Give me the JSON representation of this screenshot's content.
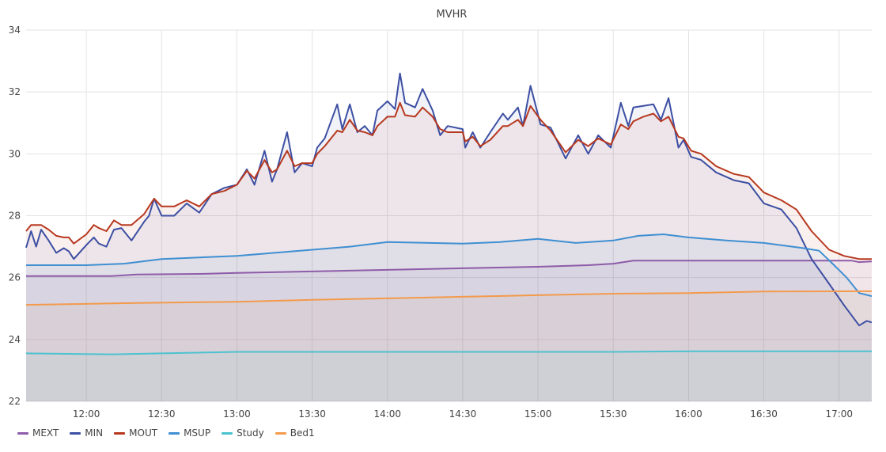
{
  "chart_data": {
    "type": "line",
    "title": "MVHR",
    "xlabel": "",
    "ylabel": "",
    "xlim": [
      "11:36",
      "17:13"
    ],
    "ylim": [
      22,
      34
    ],
    "x_ticks": [
      "12:00",
      "12:30",
      "13:00",
      "13:30",
      "14:00",
      "14:30",
      "15:00",
      "15:30",
      "16:00",
      "16:30",
      "17:00"
    ],
    "y_ticks": [
      22,
      24,
      26,
      28,
      30,
      32,
      34
    ],
    "grid": true,
    "fill_under": true,
    "legend_placement": "bottom-left",
    "series": [
      {
        "name": "MEXT",
        "color": "#8e5ca8",
        "points": [
          [
            "11:36",
            26.05
          ],
          [
            "12:10",
            26.05
          ],
          [
            "12:20",
            26.1
          ],
          [
            "12:45",
            26.12
          ],
          [
            "13:00",
            26.15
          ],
          [
            "13:30",
            26.2
          ],
          [
            "14:00",
            26.25
          ],
          [
            "14:30",
            26.3
          ],
          [
            "15:00",
            26.35
          ],
          [
            "15:20",
            26.4
          ],
          [
            "15:30",
            26.45
          ],
          [
            "15:38",
            26.55
          ],
          [
            "16:30",
            26.55
          ],
          [
            "17:05",
            26.55
          ],
          [
            "17:08",
            26.5
          ],
          [
            "17:13",
            26.52
          ]
        ]
      },
      {
        "name": "MIN",
        "color": "#3d4fa3",
        "points": [
          [
            "11:36",
            26.97
          ],
          [
            "11:38",
            27.5
          ],
          [
            "11:40",
            27.0
          ],
          [
            "11:42",
            27.55
          ],
          [
            "11:45",
            27.2
          ],
          [
            "11:48",
            26.8
          ],
          [
            "11:51",
            26.95
          ],
          [
            "11:53",
            26.85
          ],
          [
            "11:55",
            26.6
          ],
          [
            "12:00",
            27.05
          ],
          [
            "12:03",
            27.3
          ],
          [
            "12:05",
            27.1
          ],
          [
            "12:08",
            27.0
          ],
          [
            "12:11",
            27.55
          ],
          [
            "12:14",
            27.6
          ],
          [
            "12:18",
            27.2
          ],
          [
            "12:23",
            27.8
          ],
          [
            "12:25",
            28.0
          ],
          [
            "12:27",
            28.55
          ],
          [
            "12:30",
            28.0
          ],
          [
            "12:35",
            28.0
          ],
          [
            "12:40",
            28.4
          ],
          [
            "12:45",
            28.1
          ],
          [
            "12:50",
            28.7
          ],
          [
            "12:55",
            28.9
          ],
          [
            "13:00",
            29.0
          ],
          [
            "13:04",
            29.5
          ],
          [
            "13:07",
            29.0
          ],
          [
            "13:11",
            30.1
          ],
          [
            "13:14",
            29.1
          ],
          [
            "13:16",
            29.5
          ],
          [
            "13:20",
            30.7
          ],
          [
            "13:23",
            29.4
          ],
          [
            "13:26",
            29.7
          ],
          [
            "13:30",
            29.6
          ],
          [
            "13:32",
            30.2
          ],
          [
            "13:35",
            30.5
          ],
          [
            "13:40",
            31.6
          ],
          [
            "13:42",
            30.8
          ],
          [
            "13:45",
            31.6
          ],
          [
            "13:48",
            30.7
          ],
          [
            "13:51",
            30.9
          ],
          [
            "13:54",
            30.6
          ],
          [
            "13:56",
            31.4
          ],
          [
            "14:00",
            31.7
          ],
          [
            "14:03",
            31.45
          ],
          [
            "14:05",
            32.6
          ],
          [
            "14:07",
            31.65
          ],
          [
            "14:11",
            31.5
          ],
          [
            "14:14",
            32.1
          ],
          [
            "14:18",
            31.4
          ],
          [
            "14:21",
            30.6
          ],
          [
            "14:24",
            30.9
          ],
          [
            "14:30",
            30.8
          ],
          [
            "14:31",
            30.2
          ],
          [
            "14:34",
            30.7
          ],
          [
            "14:37",
            30.2
          ],
          [
            "14:41",
            30.7
          ],
          [
            "14:46",
            31.3
          ],
          [
            "14:48",
            31.1
          ],
          [
            "14:52",
            31.5
          ],
          [
            "14:54",
            30.9
          ],
          [
            "14:57",
            32.2
          ],
          [
            "15:01",
            30.95
          ],
          [
            "15:05",
            30.85
          ],
          [
            "15:11",
            29.85
          ],
          [
            "15:16",
            30.6
          ],
          [
            "15:20",
            30.0
          ],
          [
            "15:24",
            30.6
          ],
          [
            "15:29",
            30.2
          ],
          [
            "15:33",
            31.65
          ],
          [
            "15:36",
            30.9
          ],
          [
            "15:38",
            31.5
          ],
          [
            "15:42",
            31.55
          ],
          [
            "15:46",
            31.6
          ],
          [
            "15:49",
            31.1
          ],
          [
            "15:52",
            31.8
          ],
          [
            "15:56",
            30.2
          ],
          [
            "15:58",
            30.45
          ],
          [
            "16:01",
            29.9
          ],
          [
            "16:05",
            29.8
          ],
          [
            "16:11",
            29.4
          ],
          [
            "16:18",
            29.15
          ],
          [
            "16:24",
            29.05
          ],
          [
            "16:30",
            28.4
          ],
          [
            "16:37",
            28.2
          ],
          [
            "16:43",
            27.6
          ],
          [
            "16:49",
            26.6
          ],
          [
            "16:56",
            25.8
          ],
          [
            "17:02",
            25.1
          ],
          [
            "17:08",
            24.45
          ],
          [
            "17:11",
            24.6
          ],
          [
            "17:13",
            24.55
          ]
        ]
      },
      {
        "name": "MOUT",
        "color": "#b7381f",
        "points": [
          [
            "11:36",
            27.5
          ],
          [
            "11:38",
            27.7
          ],
          [
            "11:40",
            27.7
          ],
          [
            "11:42",
            27.7
          ],
          [
            "11:45",
            27.55
          ],
          [
            "11:48",
            27.35
          ],
          [
            "11:51",
            27.3
          ],
          [
            "11:53",
            27.3
          ],
          [
            "11:55",
            27.1
          ],
          [
            "12:00",
            27.4
          ],
          [
            "12:03",
            27.7
          ],
          [
            "12:05",
            27.6
          ],
          [
            "12:08",
            27.5
          ],
          [
            "12:11",
            27.85
          ],
          [
            "12:14",
            27.7
          ],
          [
            "12:18",
            27.7
          ],
          [
            "12:23",
            28.05
          ],
          [
            "12:25",
            28.3
          ],
          [
            "12:27",
            28.55
          ],
          [
            "12:30",
            28.3
          ],
          [
            "12:35",
            28.3
          ],
          [
            "12:40",
            28.5
          ],
          [
            "12:45",
            28.3
          ],
          [
            "12:50",
            28.7
          ],
          [
            "12:55",
            28.8
          ],
          [
            "13:00",
            29.0
          ],
          [
            "13:04",
            29.45
          ],
          [
            "13:07",
            29.2
          ],
          [
            "13:11",
            29.8
          ],
          [
            "13:14",
            29.4
          ],
          [
            "13:16",
            29.5
          ],
          [
            "13:20",
            30.1
          ],
          [
            "13:23",
            29.6
          ],
          [
            "13:26",
            29.7
          ],
          [
            "13:30",
            29.7
          ],
          [
            "13:32",
            30.0
          ],
          [
            "13:35",
            30.25
          ],
          [
            "13:40",
            30.75
          ],
          [
            "13:42",
            30.7
          ],
          [
            "13:45",
            31.1
          ],
          [
            "13:48",
            30.75
          ],
          [
            "13:51",
            30.7
          ],
          [
            "13:54",
            30.6
          ],
          [
            "13:56",
            30.9
          ],
          [
            "14:00",
            31.2
          ],
          [
            "14:03",
            31.2
          ],
          [
            "14:05",
            31.65
          ],
          [
            "14:07",
            31.25
          ],
          [
            "14:11",
            31.2
          ],
          [
            "14:14",
            31.5
          ],
          [
            "14:18",
            31.2
          ],
          [
            "14:21",
            30.8
          ],
          [
            "14:24",
            30.7
          ],
          [
            "14:30",
            30.7
          ],
          [
            "14:31",
            30.4
          ],
          [
            "14:34",
            30.55
          ],
          [
            "14:37",
            30.25
          ],
          [
            "14:41",
            30.45
          ],
          [
            "14:46",
            30.9
          ],
          [
            "14:48",
            30.9
          ],
          [
            "14:52",
            31.1
          ],
          [
            "14:54",
            30.9
          ],
          [
            "14:57",
            31.55
          ],
          [
            "15:01",
            31.1
          ],
          [
            "15:05",
            30.75
          ],
          [
            "15:11",
            30.05
          ],
          [
            "15:16",
            30.45
          ],
          [
            "15:20",
            30.25
          ],
          [
            "15:24",
            30.5
          ],
          [
            "15:29",
            30.3
          ],
          [
            "15:33",
            30.95
          ],
          [
            "15:36",
            30.8
          ],
          [
            "15:38",
            31.05
          ],
          [
            "15:42",
            31.2
          ],
          [
            "15:46",
            31.3
          ],
          [
            "15:49",
            31.05
          ],
          [
            "15:52",
            31.2
          ],
          [
            "15:56",
            30.55
          ],
          [
            "15:58",
            30.5
          ],
          [
            "16:01",
            30.1
          ],
          [
            "16:05",
            30.0
          ],
          [
            "16:11",
            29.6
          ],
          [
            "16:18",
            29.35
          ],
          [
            "16:24",
            29.25
          ],
          [
            "16:30",
            28.75
          ],
          [
            "16:37",
            28.5
          ],
          [
            "16:43",
            28.2
          ],
          [
            "16:49",
            27.5
          ],
          [
            "16:56",
            26.9
          ],
          [
            "17:02",
            26.7
          ],
          [
            "17:08",
            26.6
          ],
          [
            "17:11",
            26.6
          ],
          [
            "17:13",
            26.6
          ]
        ]
      },
      {
        "name": "MSUP",
        "color": "#3f8fd2",
        "points": [
          [
            "11:36",
            26.4
          ],
          [
            "12:00",
            26.4
          ],
          [
            "12:15",
            26.45
          ],
          [
            "12:30",
            26.6
          ],
          [
            "13:00",
            26.7
          ],
          [
            "13:15",
            26.8
          ],
          [
            "13:30",
            26.9
          ],
          [
            "13:45",
            27.0
          ],
          [
            "14:00",
            27.15
          ],
          [
            "14:30",
            27.1
          ],
          [
            "14:45",
            27.15
          ],
          [
            "15:00",
            27.25
          ],
          [
            "15:15",
            27.12
          ],
          [
            "15:30",
            27.2
          ],
          [
            "15:40",
            27.35
          ],
          [
            "15:50",
            27.4
          ],
          [
            "16:00",
            27.3
          ],
          [
            "16:15",
            27.2
          ],
          [
            "16:30",
            27.12
          ],
          [
            "16:45",
            26.96
          ],
          [
            "16:52",
            26.87
          ],
          [
            "16:58",
            26.4
          ],
          [
            "17:03",
            26.0
          ],
          [
            "17:08",
            25.5
          ],
          [
            "17:13",
            25.4
          ]
        ]
      },
      {
        "name": "Study",
        "color": "#4cc2cf",
        "points": [
          [
            "11:36",
            23.55
          ],
          [
            "12:10",
            23.52
          ],
          [
            "12:30",
            23.55
          ],
          [
            "13:00",
            23.6
          ],
          [
            "14:00",
            23.6
          ],
          [
            "15:00",
            23.6
          ],
          [
            "15:30",
            23.6
          ],
          [
            "16:00",
            23.62
          ],
          [
            "16:30",
            23.62
          ],
          [
            "17:13",
            23.62
          ]
        ]
      },
      {
        "name": "Bed1",
        "color": "#f39a4b",
        "points": [
          [
            "11:36",
            25.12
          ],
          [
            "12:00",
            25.15
          ],
          [
            "12:20",
            25.18
          ],
          [
            "13:00",
            25.22
          ],
          [
            "13:30",
            25.28
          ],
          [
            "14:00",
            25.33
          ],
          [
            "14:30",
            25.38
          ],
          [
            "15:00",
            25.43
          ],
          [
            "15:30",
            25.48
          ],
          [
            "16:00",
            25.5
          ],
          [
            "16:30",
            25.55
          ],
          [
            "17:13",
            25.56
          ]
        ]
      }
    ]
  }
}
